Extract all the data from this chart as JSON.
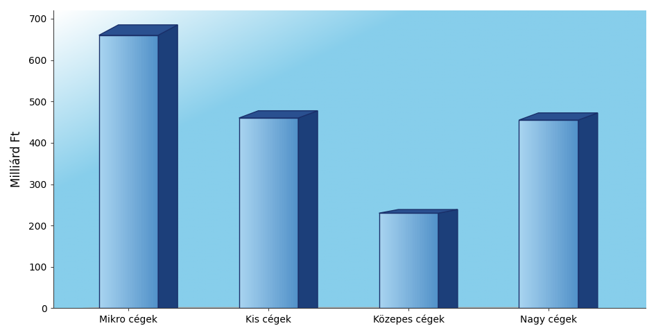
{
  "categories": [
    "Mikro cégek",
    "Kis cégek",
    "Közepes cégek",
    "Nagy cégek"
  ],
  "values": [
    660,
    460,
    230,
    455
  ],
  "ylabel": "Milliárd Ft",
  "ylim": [
    0,
    720
  ],
  "yticks": [
    0,
    100,
    200,
    300,
    400,
    500,
    600,
    700
  ],
  "bg_light": "#cce8f4",
  "bg_blue": "#87ceeb",
  "bar_front_light": "#a8d4f0",
  "bar_front_dark": "#5090c8",
  "bar_side_color": "#1c3f7a",
  "bar_top_color": "#2a5090",
  "bar_outline_color": "#1a306a",
  "floor_color": "#f0f0f0",
  "floor_outline": "#aaaaaa",
  "bar_width": 0.55,
  "depth_x": 0.18,
  "depth_y_ratio": 0.038,
  "x_positions": [
    0.6,
    1.9,
    3.2,
    4.5
  ],
  "x_lim": [
    -0.1,
    5.4
  ],
  "ylabel_fontsize": 12,
  "tick_fontsize": 11,
  "label_fontsize": 12
}
